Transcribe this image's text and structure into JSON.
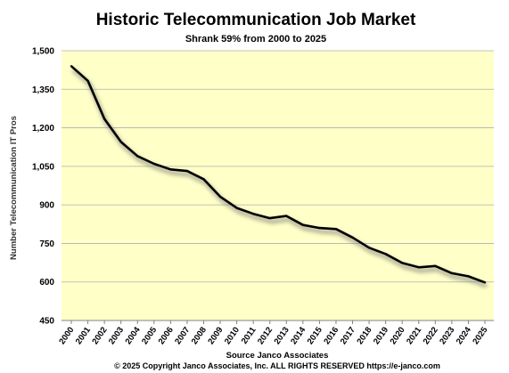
{
  "chart_data": {
    "type": "line",
    "title": "Historic Telecommunication Job Market",
    "subtitle": "Shrank 59% from 2000 to 2025",
    "xlabel": "Source Janco Associates",
    "ylabel": "Number Telecommunication  IT Pros",
    "footer": "© 2025 Copyright Janco Associates, Inc.  ALL RIGHTS RESERVED  https://e-janco.com",
    "ylim": [
      450,
      1500
    ],
    "yticks": [
      450,
      600,
      750,
      900,
      1050,
      1200,
      1350,
      1500
    ],
    "ytick_labels": [
      "450",
      "600",
      "750",
      "900",
      "1,050",
      "1,200",
      "1,350",
      "1,500"
    ],
    "categories": [
      "2000",
      "2001",
      "2002",
      "2003",
      "2004",
      "2005",
      "2006",
      "2007",
      "2008",
      "2009",
      "2010",
      "2011",
      "2012",
      "2013",
      "2014",
      "2015",
      "2016",
      "2017",
      "2018",
      "2019",
      "2020",
      "2021",
      "2022",
      "2023",
      "2024",
      "2025"
    ],
    "values": [
      1440,
      1383,
      1235,
      1145,
      1090,
      1060,
      1038,
      1032,
      1000,
      932,
      888,
      865,
      848,
      857,
      822,
      810,
      806,
      773,
      733,
      709,
      674,
      657,
      662,
      634,
      622,
      598
    ],
    "grid": true,
    "plot_background": "#ffffc8",
    "line_color": "#000000"
  }
}
